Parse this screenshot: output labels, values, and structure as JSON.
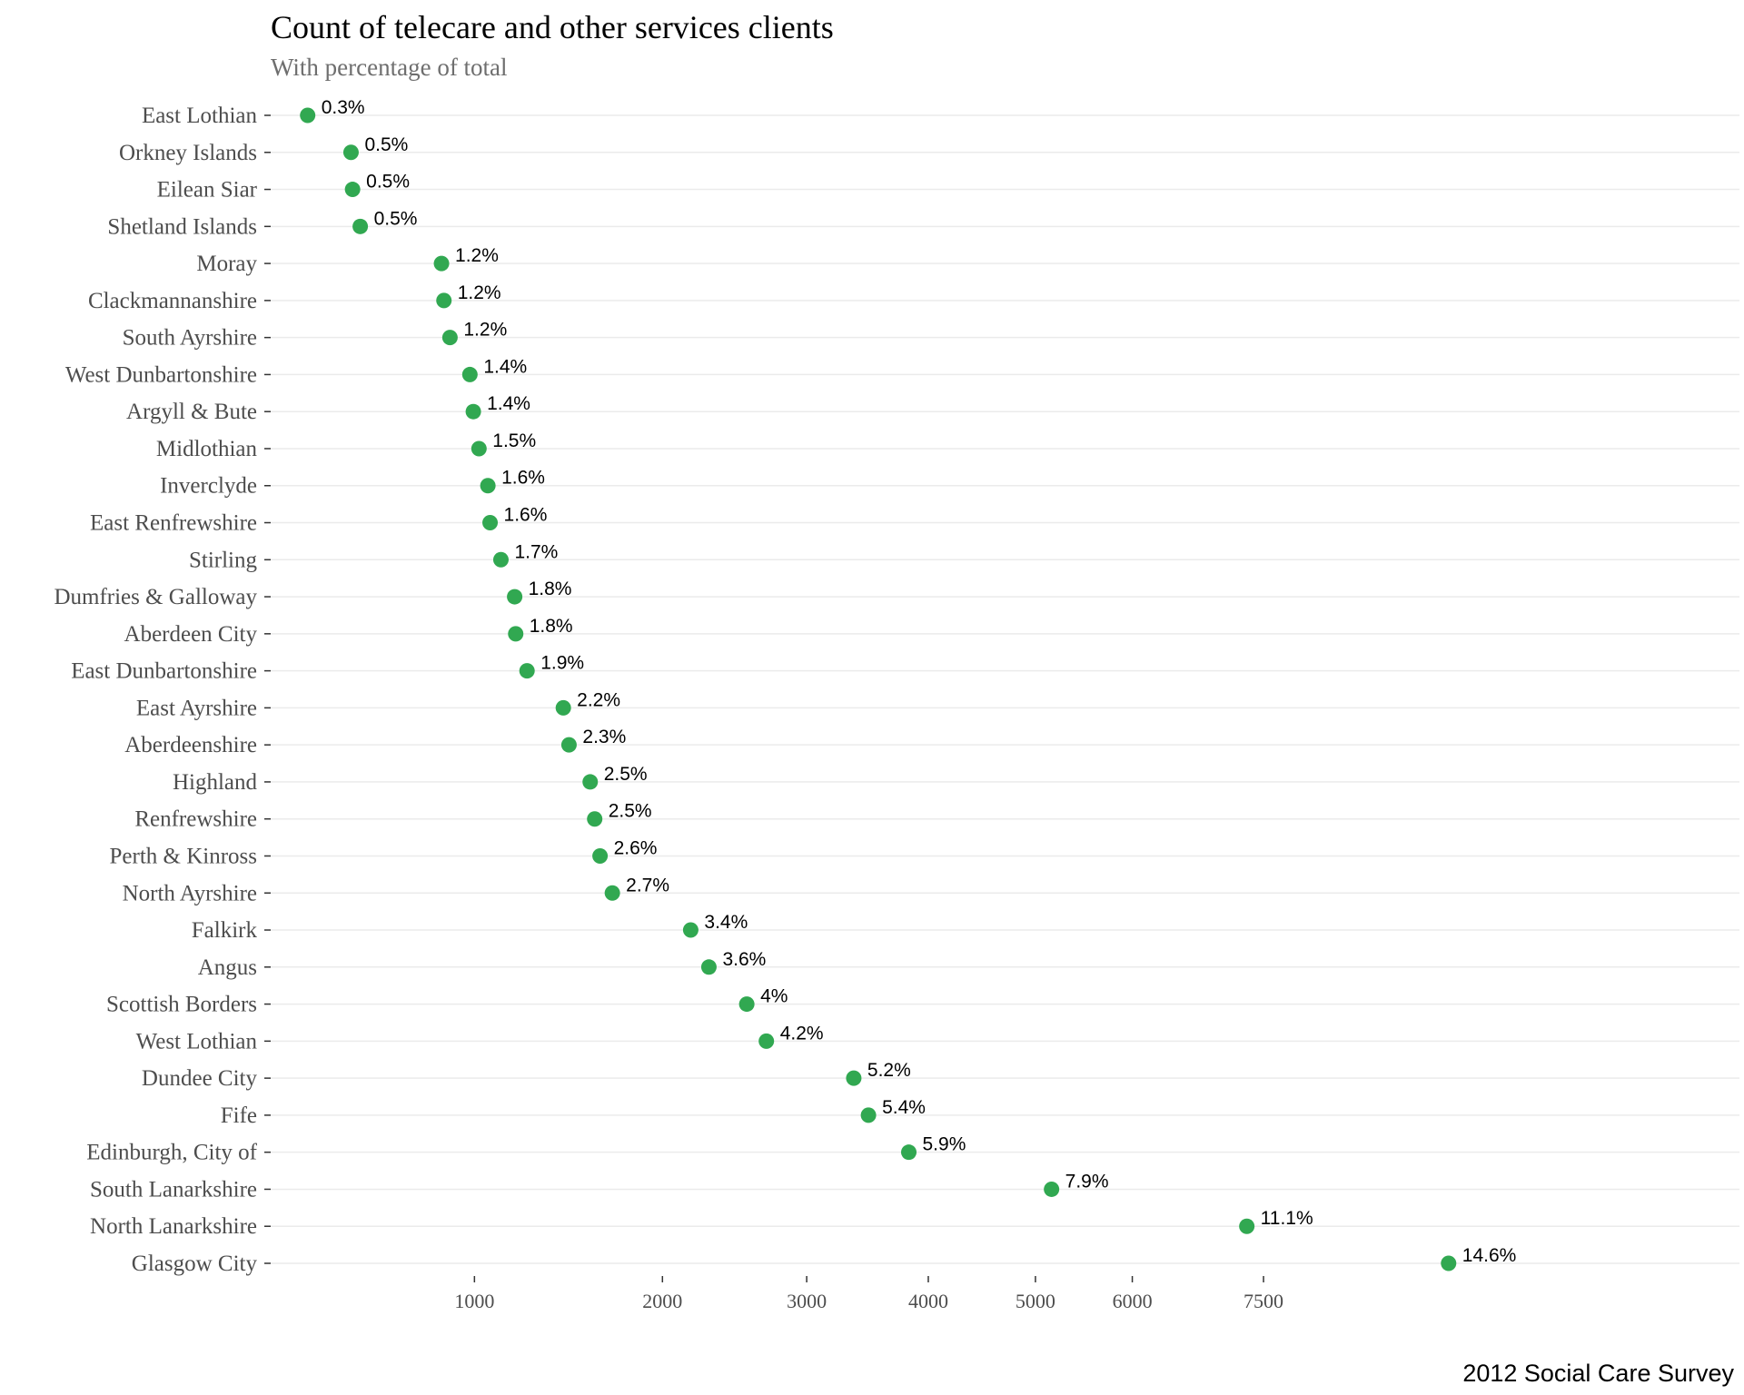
{
  "chart_data": {
    "type": "scatter",
    "title": "Count of telecare and other services clients",
    "subtitle": "With percentage of total",
    "caption": "2012 Social Care Survey",
    "xlabel": "",
    "ylabel": "",
    "x_scale": "sqrt",
    "xlim": [
      0,
      10000
    ],
    "x_ticks": [
      1000,
      2000,
      3000,
      4000,
      5000,
      6000,
      7500
    ],
    "grid": "horizontal",
    "legend": "none",
    "point_color": "#31a851",
    "points": [
      {
        "category": "East Lothian",
        "value": 400,
        "label": "0.3%"
      },
      {
        "category": "Orkney Islands",
        "value": 530,
        "label": "0.5%"
      },
      {
        "category": "Eilean Siar",
        "value": 535,
        "label": "0.5%"
      },
      {
        "category": "Shetland Islands",
        "value": 560,
        "label": "0.5%"
      },
      {
        "category": "Moray",
        "value": 860,
        "label": "1.2%"
      },
      {
        "category": "Clackmannanshire",
        "value": 870,
        "label": "1.2%"
      },
      {
        "category": "South Ayrshire",
        "value": 895,
        "label": "1.2%"
      },
      {
        "category": "West Dunbartonshire",
        "value": 980,
        "label": "1.4%"
      },
      {
        "category": "Argyll & Bute",
        "value": 995,
        "label": "1.4%"
      },
      {
        "category": "Midlothian",
        "value": 1020,
        "label": "1.5%"
      },
      {
        "category": "Inverclyde",
        "value": 1060,
        "label": "1.6%"
      },
      {
        "category": "East Renfrewshire",
        "value": 1070,
        "label": "1.6%"
      },
      {
        "category": "Stirling",
        "value": 1120,
        "label": "1.7%"
      },
      {
        "category": "Dumfries & Galloway",
        "value": 1185,
        "label": "1.8%"
      },
      {
        "category": "Aberdeen City",
        "value": 1190,
        "label": "1.8%"
      },
      {
        "category": "East Dunbartonshire",
        "value": 1245,
        "label": "1.9%"
      },
      {
        "category": "East Ayrshire",
        "value": 1430,
        "label": "2.2%"
      },
      {
        "category": "Aberdeenshire",
        "value": 1460,
        "label": "2.3%"
      },
      {
        "category": "Highland",
        "value": 1575,
        "label": "2.5%"
      },
      {
        "category": "Renfrewshire",
        "value": 1600,
        "label": "2.5%"
      },
      {
        "category": "Perth & Kinross",
        "value": 1630,
        "label": "2.6%"
      },
      {
        "category": "North Ayrshire",
        "value": 1700,
        "label": "2.7%"
      },
      {
        "category": "Falkirk",
        "value": 2180,
        "label": "3.4%"
      },
      {
        "category": "Angus",
        "value": 2300,
        "label": "3.6%"
      },
      {
        "category": "Scottish Borders",
        "value": 2560,
        "label": "4%"
      },
      {
        "category": "West Lothian",
        "value": 2700,
        "label": "4.2%"
      },
      {
        "category": "Dundee City",
        "value": 3370,
        "label": "5.2%"
      },
      {
        "category": "Fife",
        "value": 3490,
        "label": "5.4%"
      },
      {
        "category": "Edinburgh, City of",
        "value": 3830,
        "label": "5.9%"
      },
      {
        "category": "South Lanarkshire",
        "value": 5160,
        "label": "7.9%"
      },
      {
        "category": "North Lanarkshire",
        "value": 7300,
        "label": "11.1%"
      },
      {
        "category": "Glasgow City",
        "value": 9900,
        "label": "14.6%"
      }
    ]
  }
}
